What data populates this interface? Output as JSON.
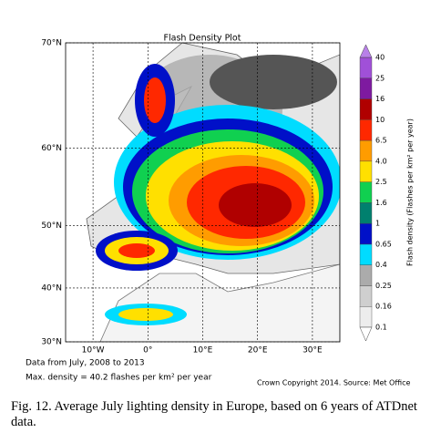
{
  "chart_data": {
    "type": "map",
    "title": "Flash Density Plot",
    "projection": "mercator",
    "xlim": [
      -15,
      35
    ],
    "ylim": [
      30,
      70
    ],
    "xticks": [
      {
        "value": -10,
        "label": "10°W"
      },
      {
        "value": 0,
        "label": "0°"
      },
      {
        "value": 10,
        "label": "10°E"
      },
      {
        "value": 20,
        "label": "20°E"
      },
      {
        "value": 30,
        "label": "30°E"
      }
    ],
    "yticks": [
      {
        "value": 30,
        "label": "30°N"
      },
      {
        "value": 40,
        "label": "40°N"
      },
      {
        "value": 50,
        "label": "50°N"
      },
      {
        "value": 60,
        "label": "60°N"
      },
      {
        "value": 70,
        "label": "70°N"
      }
    ],
    "grid": true,
    "colorbar": {
      "label": "Flash density (Flashes per km² per year)",
      "levels": [
        0.1,
        0.16,
        0.25,
        0.4,
        0.65,
        1,
        1.6,
        2.5,
        {
          "value": 4,
          "label": "4.0"
        },
        6.5,
        10,
        16,
        25,
        40
      ],
      "colors": [
        "#ededed",
        "#cfcfcf",
        "#ababab",
        "#00dcff",
        "#0010c8",
        "#00806e",
        "#10d050",
        "#ffe000",
        "#ff9c00",
        "#ff2800",
        "#b00000",
        "#7e1aa0",
        "#a050d8"
      ],
      "under_color": "#ffffff",
      "over_color": "#b880e8"
    },
    "annotations": [
      "Data from July, 2008 to 2013",
      "Max. density = 40.2 flashes per km² per year",
      "Crown Copyright 2014. Source: Met Office"
    ]
  },
  "caption": "Fig. 12. Average July lighting density in Europe, based on 6 years of ATDnet data."
}
